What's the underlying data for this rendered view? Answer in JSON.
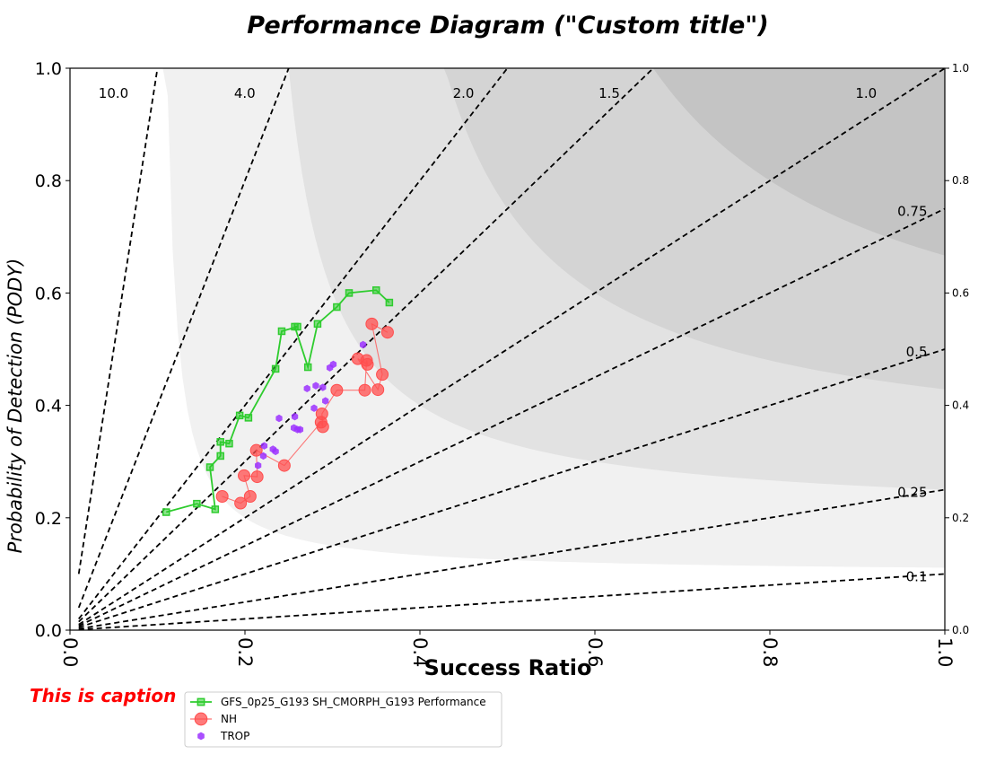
{
  "chart_data": {
    "type": "scatter",
    "title": "Performance Diagram (\"Custom title\")",
    "xlabel": "Success Ratio",
    "ylabel": "Probability of Detection (PODY)",
    "xlim": [
      0,
      1
    ],
    "ylim": [
      0,
      1
    ],
    "x_ticks": [
      "0.0",
      "0.2",
      "0.4",
      "0.6",
      "0.8",
      "1.0"
    ],
    "y_ticks_left": [
      "0.0",
      "0.2",
      "0.4",
      "0.6",
      "0.8",
      "1.0"
    ],
    "y_ticks_right": [
      "0.0",
      "0.2",
      "0.4",
      "0.6",
      "0.8",
      "1.0"
    ],
    "csi_contour_levels": [
      0.1,
      0.2,
      0.3,
      0.4,
      0.5,
      0.6,
      0.7,
      0.8,
      0.9
    ],
    "csi_fill_colors": [
      "#ffffff",
      "#f1f1f1",
      "#e2e2e2",
      "#d4d4d4",
      "#c4c4c4",
      "#b4b4b4",
      "#a5a5a5",
      "#979797",
      "#888888"
    ],
    "bias_lines": [
      {
        "bias": 10.0,
        "label": "10.0"
      },
      {
        "bias": 4.0,
        "label": "4.0"
      },
      {
        "bias": 2.0,
        "label": "2.0"
      },
      {
        "bias": 1.5,
        "label": "1.5"
      },
      {
        "bias": 1.0,
        "label": "1.0"
      },
      {
        "bias": 0.75,
        "label": "0.75"
      },
      {
        "bias": 0.5,
        "label": "0.5"
      },
      {
        "bias": 0.25,
        "label": "0.25"
      },
      {
        "bias": 0.1,
        "label": "0.1"
      }
    ],
    "grid": false,
    "legend_position": "bottom-left, below axes",
    "caption": "This is caption",
    "series": [
      {
        "name": "GFS_0p25_G193 SH_CMORPH_G193 Performance",
        "color": "#2ecc2e",
        "marker": "square",
        "points": [
          [
            0.11,
            0.21
          ],
          [
            0.145,
            0.225
          ],
          [
            0.166,
            0.215
          ],
          [
            0.16,
            0.29
          ],
          [
            0.172,
            0.31
          ],
          [
            0.172,
            0.335
          ],
          [
            0.182,
            0.332
          ],
          [
            0.194,
            0.382
          ],
          [
            0.204,
            0.378
          ],
          [
            0.235,
            0.465
          ],
          [
            0.242,
            0.532
          ],
          [
            0.26,
            0.54
          ],
          [
            0.257,
            0.54
          ],
          [
            0.272,
            0.468
          ],
          [
            0.283,
            0.545
          ],
          [
            0.305,
            0.575
          ],
          [
            0.319,
            0.6
          ],
          [
            0.35,
            0.605
          ],
          [
            0.365,
            0.583
          ]
        ]
      },
      {
        "name": "NH",
        "color": "#ff4d4d",
        "marker": "circle",
        "points": [
          [
            0.174,
            0.238
          ],
          [
            0.195,
            0.226
          ],
          [
            0.206,
            0.238
          ],
          [
            0.199,
            0.275
          ],
          [
            0.214,
            0.273
          ],
          [
            0.213,
            0.32
          ],
          [
            0.245,
            0.293
          ],
          [
            0.287,
            0.37
          ],
          [
            0.289,
            0.362
          ],
          [
            0.288,
            0.385
          ],
          [
            0.305,
            0.427
          ],
          [
            0.337,
            0.427
          ],
          [
            0.339,
            0.48
          ],
          [
            0.34,
            0.473
          ],
          [
            0.329,
            0.483
          ],
          [
            0.352,
            0.428
          ],
          [
            0.357,
            0.455
          ],
          [
            0.345,
            0.545
          ],
          [
            0.363,
            0.53
          ]
        ]
      },
      {
        "name": "TROP",
        "color": "#9b30ff",
        "marker": "hexagon",
        "points": [
          [
            0.215,
            0.293
          ],
          [
            0.221,
            0.31
          ],
          [
            0.222,
            0.328
          ],
          [
            0.232,
            0.322
          ],
          [
            0.235,
            0.318
          ],
          [
            0.239,
            0.377
          ],
          [
            0.256,
            0.36
          ],
          [
            0.26,
            0.357
          ],
          [
            0.263,
            0.357
          ],
          [
            0.257,
            0.38
          ],
          [
            0.271,
            0.43
          ],
          [
            0.279,
            0.395
          ],
          [
            0.281,
            0.435
          ],
          [
            0.289,
            0.432
          ],
          [
            0.292,
            0.408
          ],
          [
            0.297,
            0.467
          ],
          [
            0.301,
            0.473
          ],
          [
            0.335,
            0.508
          ]
        ]
      }
    ]
  }
}
